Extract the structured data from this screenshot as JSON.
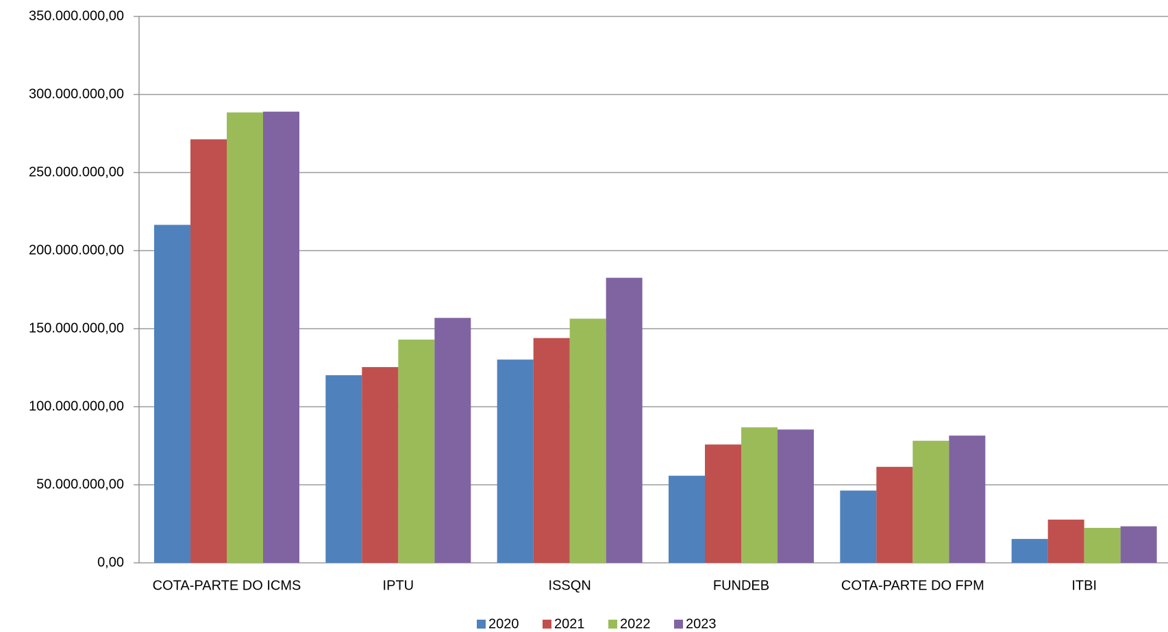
{
  "chart_data": {
    "type": "bar",
    "categories": [
      "COTA-PARTE DO ICMS",
      "IPTU",
      "ISSQN",
      "FUNDEB",
      "COTA-PARTE DO FPM",
      "ITBI"
    ],
    "series": [
      {
        "name": "2020",
        "color": "#4f81bd",
        "values": [
          216500000,
          120200000,
          130200000,
          55800000,
          46300000,
          15300000
        ]
      },
      {
        "name": "2021",
        "color": "#c0504d",
        "values": [
          271300000,
          125400000,
          144000000,
          75800000,
          61500000,
          27700000
        ]
      },
      {
        "name": "2022",
        "color": "#9bbb59",
        "values": [
          288500000,
          143000000,
          156400000,
          86800000,
          78200000,
          22400000
        ]
      },
      {
        "name": "2023",
        "color": "#8064a2",
        "values": [
          289000000,
          156900000,
          182600000,
          85400000,
          81500000,
          23400000
        ]
      }
    ],
    "ylim": [
      0,
      350000000
    ],
    "yticks": [
      {
        "value": 0,
        "label": "0,00"
      },
      {
        "value": 50000000,
        "label": "50.000.000,00"
      },
      {
        "value": 100000000,
        "label": "100.000.000,00"
      },
      {
        "value": 150000000,
        "label": "150.000.000,00"
      },
      {
        "value": 200000000,
        "label": "200.000.000,00"
      },
      {
        "value": 250000000,
        "label": "250.000.000,00"
      },
      {
        "value": 300000000,
        "label": "300.000.000,00"
      },
      {
        "value": 350000000,
        "label": "350.000.000,00"
      }
    ],
    "grid": true,
    "legend": "bottom"
  }
}
